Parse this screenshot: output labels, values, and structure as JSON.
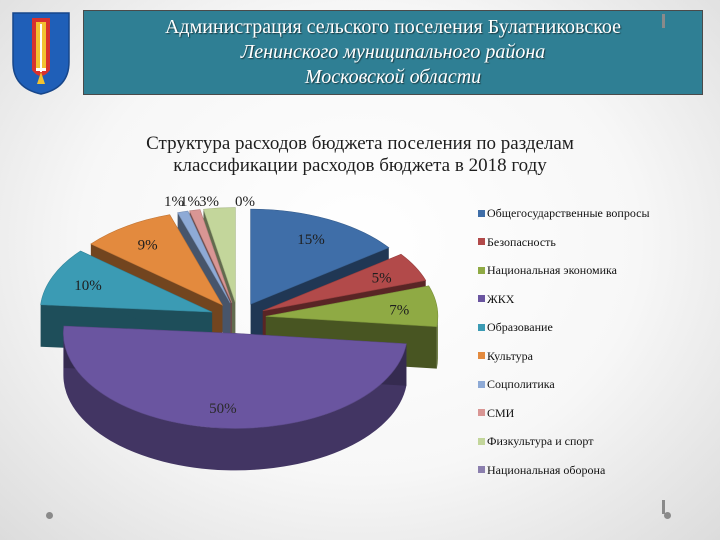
{
  "header": {
    "line1": "Администрация сельского поселения Булатниковское",
    "line2": "Ленинского муниципального района",
    "line3": "Московской области"
  },
  "chart_data": {
    "type": "pie",
    "title_line1": "Структура расходов бюджета поселения по разделам",
    "title_line2": "классификации расходов бюджета в 2018 году",
    "legend_position": "right",
    "categories": [
      "Общегосударственные вопросы",
      "Безопасность",
      "Национальная экономика",
      "ЖКХ",
      "Образование",
      "Культура",
      "Соцполитика",
      "СМИ",
      "Физкультура и спорт",
      "Национальная оборона"
    ],
    "values": [
      15,
      5,
      7,
      50,
      10,
      9,
      1,
      1,
      3,
      0
    ],
    "data_labels": [
      "15%",
      "5%",
      "7%",
      "50%",
      "10%",
      "9%",
      "1%",
      "1%",
      "3%",
      "0%"
    ],
    "colors": [
      "#3f6ea8",
      "#b24a4a",
      "#8faa44",
      "#6a55a0",
      "#3b9bb4",
      "#e38a3e",
      "#8eaad6",
      "#d99694",
      "#c3d69b",
      "#8b7fae"
    ]
  }
}
